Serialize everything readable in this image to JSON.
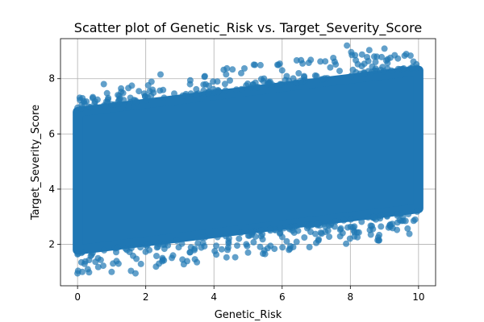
{
  "chart_data": {
    "type": "scatter",
    "title": "Scatter plot of Genetic_Risk vs. Target_Severity_Score",
    "xlabel": "Genetic_Risk",
    "ylabel": "Target_Severity_Score",
    "xlim": [
      -0.5,
      10.5
    ],
    "ylim": [
      0.5,
      9.45
    ],
    "x_ticks": [
      0,
      2,
      4,
      6,
      8,
      10
    ],
    "y_ticks": [
      2,
      4,
      6,
      8
    ],
    "grid": true,
    "legend": "none",
    "marker_color": "#1f77b4",
    "marker_alpha": 0.7,
    "density_model": {
      "x_range": [
        0,
        10
      ],
      "mean_intercept": 4.3,
      "mean_slope": 0.15,
      "band_half_width": 2.5
    },
    "points": [
      {
        "x": 0.0,
        "y": 0.95
      },
      {
        "x": 0.0,
        "y": 6.95
      },
      {
        "x": 0.3,
        "y": 1.1
      },
      {
        "x": 0.5,
        "y": 7.1
      },
      {
        "x": 0.6,
        "y": 1.5
      },
      {
        "x": 0.9,
        "y": 7.3
      },
      {
        "x": 1.0,
        "y": 1.0
      },
      {
        "x": 1.2,
        "y": 1.3
      },
      {
        "x": 1.5,
        "y": 7.0
      },
      {
        "x": 1.7,
        "y": 0.95
      },
      {
        "x": 1.8,
        "y": 7.55
      },
      {
        "x": 2.2,
        "y": 7.6
      },
      {
        "x": 2.5,
        "y": 1.45
      },
      {
        "x": 2.8,
        "y": 1.6
      },
      {
        "x": 3.3,
        "y": 7.8
      },
      {
        "x": 3.5,
        "y": 1.35
      },
      {
        "x": 4.1,
        "y": 7.9
      },
      {
        "x": 4.4,
        "y": 1.8
      },
      {
        "x": 4.8,
        "y": 8.2
      },
      {
        "x": 5.0,
        "y": 1.7
      },
      {
        "x": 5.2,
        "y": 8.5
      },
      {
        "x": 5.5,
        "y": 1.65
      },
      {
        "x": 6.0,
        "y": 8.3
      },
      {
        "x": 6.2,
        "y": 1.8
      },
      {
        "x": 6.6,
        "y": 8.55
      },
      {
        "x": 6.8,
        "y": 1.9
      },
      {
        "x": 7.0,
        "y": 2.05
      },
      {
        "x": 7.5,
        "y": 8.75
      },
      {
        "x": 7.9,
        "y": 9.2
      },
      {
        "x": 8.1,
        "y": 2.5
      },
      {
        "x": 8.6,
        "y": 2.35
      },
      {
        "x": 8.8,
        "y": 2.15
      },
      {
        "x": 8.7,
        "y": 8.8
      },
      {
        "x": 9.3,
        "y": 8.85
      },
      {
        "x": 9.5,
        "y": 2.85
      },
      {
        "x": 9.9,
        "y": 2.9
      }
    ]
  }
}
